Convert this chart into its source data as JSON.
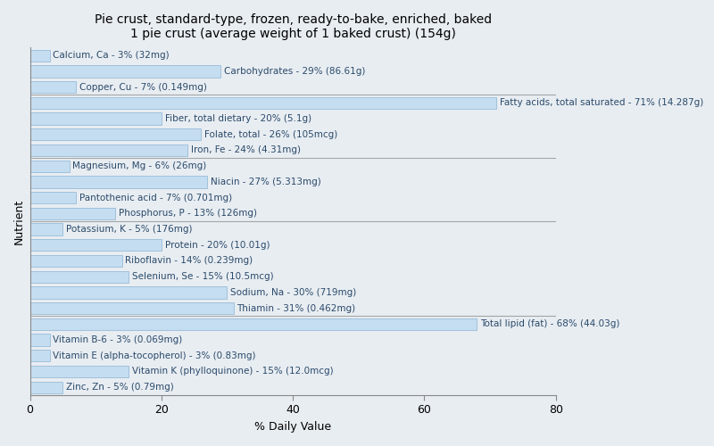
{
  "title_line1": "Pie crust, standard-type, frozen, ready-to-bake, enriched, baked",
  "title_line2": "1 pie crust (average weight of 1 baked crust) (154g)",
  "xlabel": "% Daily Value",
  "ylabel": "Nutrient",
  "background_color": "#e8edf2",
  "bar_color": "#c5ddf0",
  "bar_edge_color": "#8ab4d4",
  "text_color": "#2a4a6a",
  "xlim": [
    0,
    80
  ],
  "nutrients": [
    "Calcium, Ca - 3% (32mg)",
    "Carbohydrates - 29% (86.61g)",
    "Copper, Cu - 7% (0.149mg)",
    "Fatty acids, total saturated - 71% (14.287g)",
    "Fiber, total dietary - 20% (5.1g)",
    "Folate, total - 26% (105mcg)",
    "Iron, Fe - 24% (4.31mg)",
    "Magnesium, Mg - 6% (26mg)",
    "Niacin - 27% (5.313mg)",
    "Pantothenic acid - 7% (0.701mg)",
    "Phosphorus, P - 13% (126mg)",
    "Potassium, K - 5% (176mg)",
    "Protein - 20% (10.01g)",
    "Riboflavin - 14% (0.239mg)",
    "Selenium, Se - 15% (10.5mcg)",
    "Sodium, Na - 30% (719mg)",
    "Thiamin - 31% (0.462mg)",
    "Total lipid (fat) - 68% (44.03g)",
    "Vitamin B-6 - 3% (0.069mg)",
    "Vitamin E (alpha-tocopherol) - 3% (0.83mg)",
    "Vitamin K (phylloquinone) - 15% (12.0mcg)",
    "Zinc, Zn - 5% (0.79mg)"
  ],
  "values": [
    3,
    29,
    7,
    71,
    20,
    26,
    24,
    6,
    27,
    7,
    13,
    5,
    20,
    14,
    15,
    30,
    31,
    68,
    3,
    3,
    15,
    5
  ],
  "tick_positions": [
    0,
    20,
    40,
    60,
    80
  ],
  "separator_after_indices": [
    2,
    6,
    10,
    16
  ],
  "title_fontsize": 10,
  "label_fontsize": 7.5,
  "axis_fontsize": 9
}
